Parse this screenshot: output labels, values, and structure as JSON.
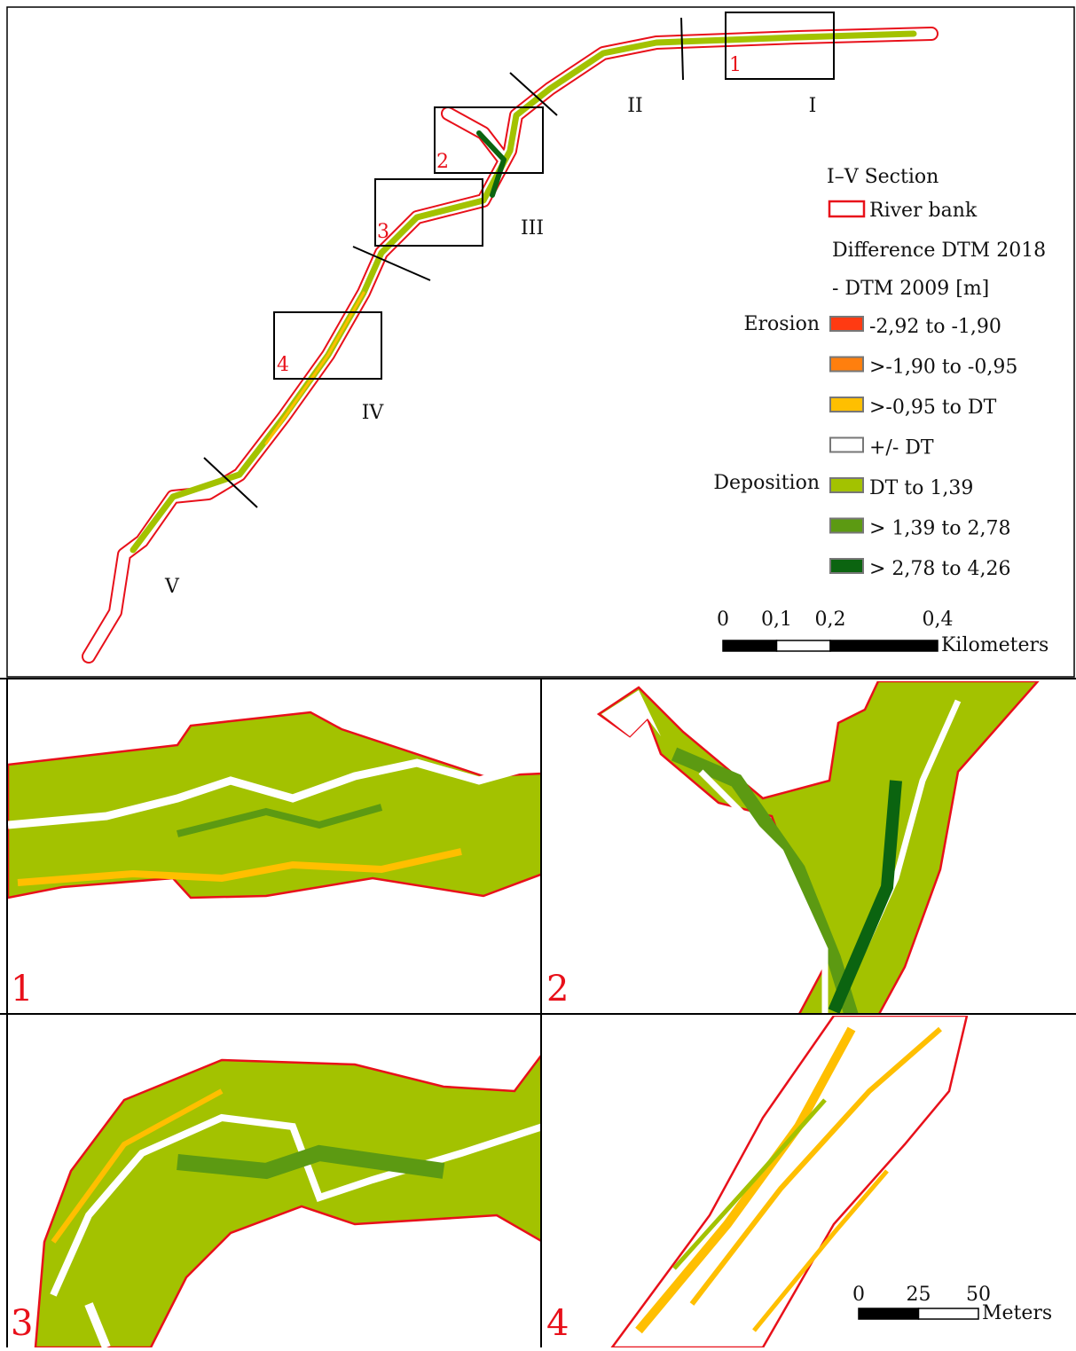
{
  "overview": {
    "sections": [
      "I",
      "II",
      "III",
      "IV",
      "V"
    ],
    "boxes": [
      "1",
      "2",
      "3",
      "4"
    ]
  },
  "legend": {
    "title": "I–V Section",
    "bank": {
      "label": "River bank",
      "color": "#e8101a"
    },
    "heading": [
      "Difference DTM 2018",
      "- DTM 2009 [m]"
    ],
    "erosion_label": "Erosion",
    "deposition_label": "Deposition",
    "classes": [
      {
        "label": "-2,92 to -1,90",
        "color": "#ff3a12"
      },
      {
        "label": ">-1,90 to -0,95",
        "color": "#ff7f0e"
      },
      {
        "label": ">-0,95 to DT",
        "color": "#ffbf00"
      },
      {
        "label": "+/- DT",
        "color": "#ffffff"
      },
      {
        "label": "DT to 1,39",
        "color": "#a3c200"
      },
      {
        "label": "> 1,39 to 2,78",
        "color": "#5c9a12"
      },
      {
        "label": "> 2,78 to 4,26",
        "color": "#0b6410"
      }
    ]
  },
  "scale_km": {
    "ticks": [
      0,
      {
        "value": 0.1,
        "label": "0,1"
      },
      {
        "value": 0.2,
        "label": "0,2"
      },
      {
        "value": 0.4,
        "label": "0,4"
      }
    ],
    "unit": "Kilometers"
  },
  "scale_m": {
    "ticks": [
      0,
      25,
      50
    ],
    "unit": "Meters"
  },
  "panels": [
    "1",
    "2",
    "3",
    "4"
  ]
}
